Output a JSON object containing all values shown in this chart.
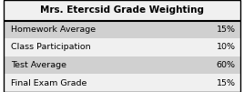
{
  "title": "Mrs. Etercsid Grade Weighting",
  "rows": [
    [
      "Homework Average",
      "15%"
    ],
    [
      "Class Participation",
      "10%"
    ],
    [
      "Test Average",
      "60%"
    ],
    [
      "Final Exam Grade",
      "15%"
    ]
  ],
  "row_colors": [
    "#d0d0d0",
    "#f0f0f0",
    "#d0d0d0",
    "#f0f0f0"
  ],
  "header_bg": "#f0f0f0",
  "header_text_color": "#000000",
  "cell_text_color": "#000000",
  "border_color": "#000000",
  "title_fontsize": 7.5,
  "cell_fontsize": 6.8
}
